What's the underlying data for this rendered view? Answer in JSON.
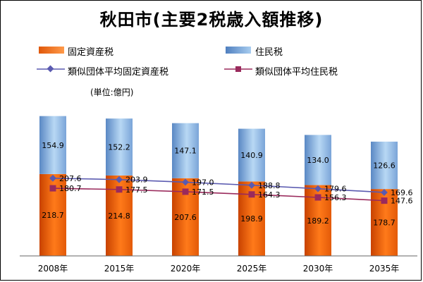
{
  "chart_data": {
    "type": "bar",
    "title": "秋田市(主要2税歳入額推移)",
    "unit_label": "(単位:億円)",
    "categories": [
      "2008年",
      "2015年",
      "2020年",
      "2025年",
      "2030年",
      "2035年"
    ],
    "stacked": true,
    "series": [
      {
        "name": "固定資産税",
        "kind": "bar",
        "color": "#e0580a",
        "values": [
          218.7,
          214.8,
          207.6,
          198.9,
          189.2,
          178.7
        ]
      },
      {
        "name": "住民税",
        "kind": "bar",
        "color": "#7aa8dc",
        "values": [
          154.9,
          152.2,
          147.1,
          140.9,
          134.0,
          126.6
        ]
      },
      {
        "name": "類似団体平均固定資産税",
        "kind": "line",
        "marker": "diamond",
        "color": "#5a5ab0",
        "values": [
          207.6,
          203.9,
          197.0,
          188.8,
          179.6,
          169.6
        ]
      },
      {
        "name": "類似団体平均住民税",
        "kind": "line",
        "marker": "square",
        "color": "#9a2a5c",
        "values": [
          180.7,
          177.5,
          171.5,
          164.3,
          156.3,
          147.6
        ]
      }
    ],
    "ylim": [
      0,
      420
    ],
    "grid": false,
    "legend": "top"
  }
}
